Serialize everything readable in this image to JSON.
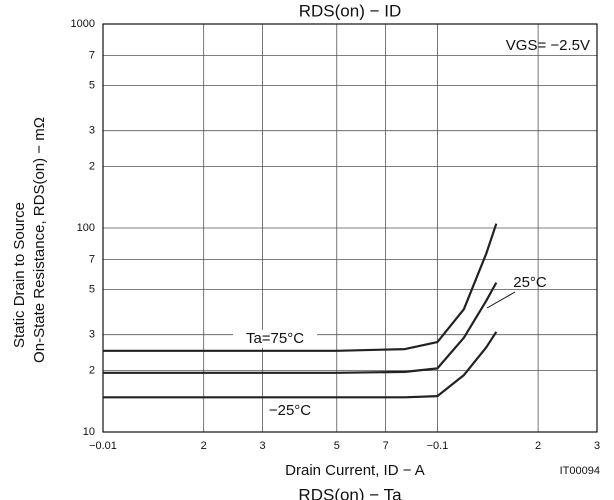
{
  "chart_data": {
    "type": "line",
    "title": "RDS(on) − ID",
    "subtitle": "RDS(on) − Ta",
    "x_label": "Drain Current, ID − A",
    "y_label": [
      "Static Drain to Source",
      "On-State Resistance, RDS(on) − mΩ"
    ],
    "annotations": [
      "VGS= −2.5V",
      "IT00094"
    ],
    "log_x": true,
    "log_y": true,
    "grid": true,
    "xlim": [
      0.01,
      0.3
    ],
    "ylim": [
      10,
      1000
    ],
    "xticks": [
      {
        "value": 0.01,
        "label": "−0.01"
      },
      {
        "value": 0.02,
        "label": "2"
      },
      {
        "value": 0.03,
        "label": "3"
      },
      {
        "value": 0.05,
        "label": "5"
      },
      {
        "value": 0.07,
        "label": "7"
      },
      {
        "value": 0.1,
        "label": "−0.1"
      },
      {
        "value": 0.2,
        "label": "2"
      },
      {
        "value": 0.3,
        "label": "3"
      }
    ],
    "yticks": [
      10,
      {
        "value": 20,
        "label": "2"
      },
      {
        "value": 30,
        "label": "3"
      },
      {
        "value": 50,
        "label": "5"
      },
      {
        "value": 70,
        "label": "7"
      },
      100,
      {
        "value": 200,
        "label": "2"
      },
      {
        "value": 300,
        "label": "3"
      },
      {
        "value": 500,
        "label": "5"
      },
      {
        "value": 700,
        "label": "7"
      },
      1000
    ],
    "x": [
      0.01,
      0.02,
      0.05,
      0.08,
      0.1,
      0.12,
      0.14,
      0.15
    ],
    "series": [
      {
        "name": "Ta=75°C",
        "color": "#222222",
        "values": [
          25,
          25,
          25,
          25.5,
          27.6,
          40,
          75,
          105
        ]
      },
      {
        "name": "25°C",
        "color": "#222222",
        "values": [
          19.5,
          19.5,
          19.5,
          19.7,
          20.5,
          29,
          44,
          54
        ]
      },
      {
        "name": "−25°C",
        "color": "#222222",
        "values": [
          14.8,
          14.8,
          14.8,
          14.8,
          15,
          19,
          26,
          31
        ]
      }
    ]
  }
}
